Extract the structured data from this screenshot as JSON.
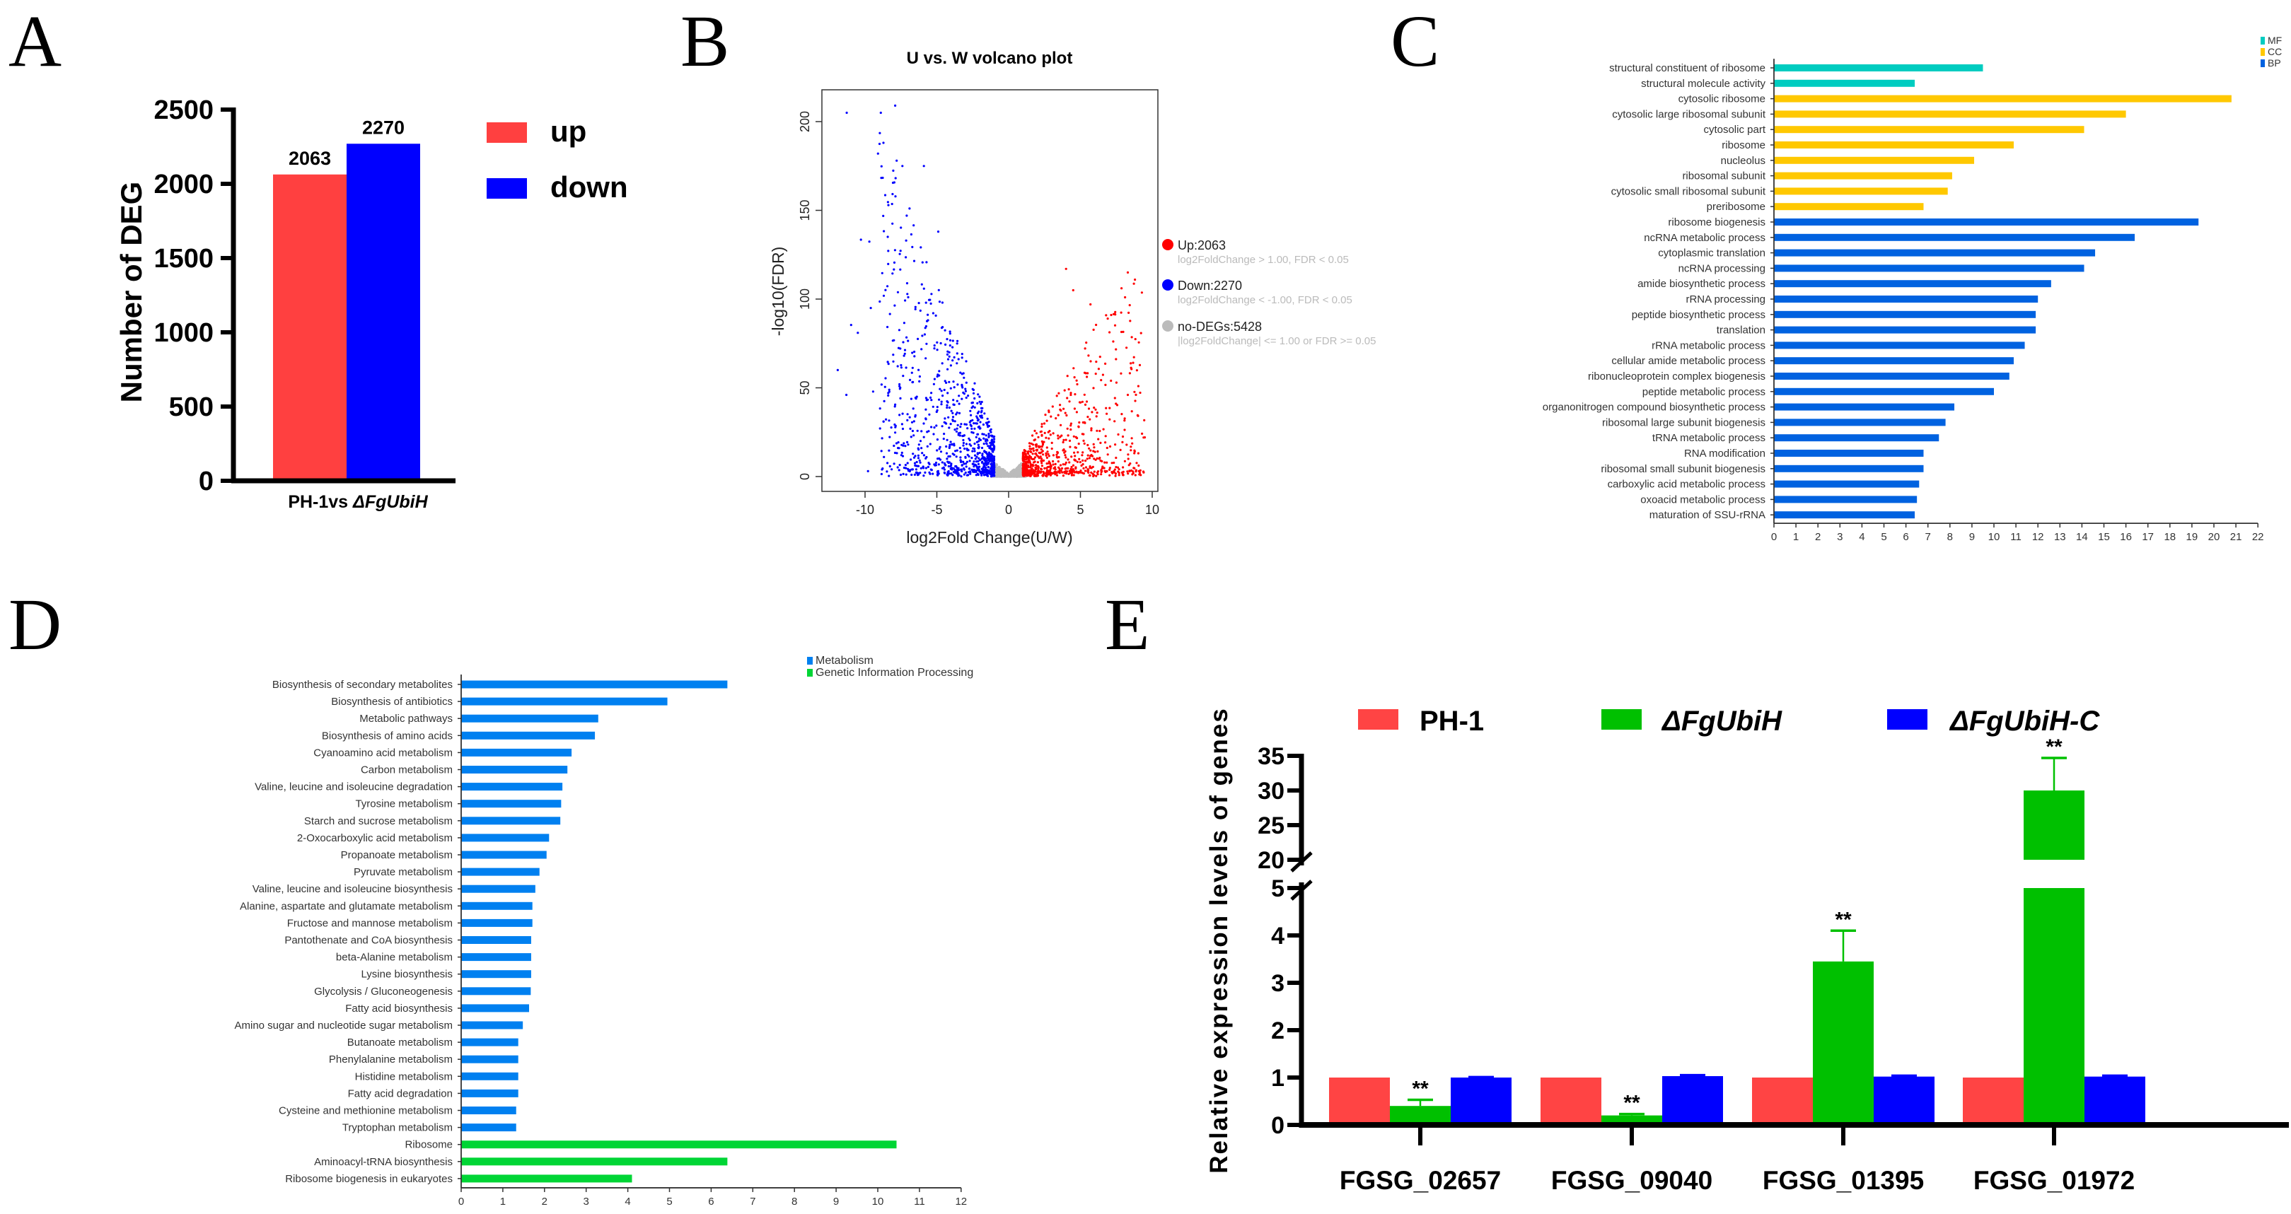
{
  "panel_letters": {
    "a": "A",
    "b": "B",
    "c": "C",
    "d": "D",
    "e": "E"
  },
  "chart_data": [
    {
      "panel": "A",
      "type": "bar",
      "title": "",
      "categories": [
        "PH-1vs ΔFgUbiH"
      ],
      "xlabel_prefix": "PH-1vs ",
      "xlabel_strain": "ΔFgUbiH",
      "ylabel": "Number of DEG",
      "ylim": [
        0,
        2500
      ],
      "yticks": [
        "0",
        "500",
        "1000",
        "1500",
        "2000",
        "2500"
      ],
      "series": [
        {
          "name": "up",
          "values": [
            2063
          ],
          "label": "2063",
          "color": "#FF4040"
        },
        {
          "name": "down",
          "values": [
            2270
          ],
          "label": "2270",
          "color": "#0000FF"
        }
      ],
      "legend": "right"
    },
    {
      "panel": "B",
      "type": "scatter",
      "title": "U vs. W volcano plot",
      "xlabel": "log2Fold Change(U/W)",
      "ylabel": "-log10(FDR)",
      "xlim": [
        -12.5,
        10.5
      ],
      "ylim": [
        -8,
        218
      ],
      "xticks": [
        "-10",
        "-5",
        "0",
        "5",
        "10"
      ],
      "yticks": [
        "0",
        "50",
        "100",
        "150",
        "200"
      ],
      "series": [
        {
          "name": "Up",
          "count": 2063,
          "label": "Up:2063",
          "criteria": "log2FoldChange > 1.00, FDR < 0.05",
          "color": "#FF0000"
        },
        {
          "name": "Down",
          "count": 2270,
          "label": "Down:2270",
          "criteria": "log2FoldChange < -1.00, FDR < 0.05",
          "color": "#0000FF"
        },
        {
          "name": "no-DEGs",
          "count": 5428,
          "label": "no-DEGs:5428",
          "criteria": "|log2FoldChange| <= 1.00 or FDR >= 0.05",
          "color": "#BBBBBB"
        }
      ],
      "legend": "right"
    },
    {
      "panel": "C",
      "type": "bar",
      "orientation": "horizontal",
      "xlim": [
        0,
        22
      ],
      "xticks": [
        "0",
        "1",
        "2",
        "3",
        "4",
        "5",
        "6",
        "7",
        "8",
        "9",
        "10",
        "11",
        "12",
        "13",
        "14",
        "15",
        "16",
        "17",
        "18",
        "19",
        "20",
        "21",
        "22"
      ],
      "legend_items": [
        {
          "key": "MF",
          "label": "MF",
          "color": "#00CCC0"
        },
        {
          "key": "CC",
          "label": "CC",
          "color": "#FFC800"
        },
        {
          "key": "BP",
          "label": "BP",
          "color": "#0062E0"
        }
      ],
      "legend": "top-right",
      "categories": [
        "structural constituent of ribosome",
        "structural molecule activity",
        "cytosolic ribosome",
        "cytosolic large ribosomal subunit",
        "cytosolic part",
        "ribosome",
        "nucleolus",
        "ribosomal subunit",
        "cytosolic small ribosomal subunit",
        "preribosome",
        "ribosome biogenesis",
        "ncRNA metabolic process",
        "cytoplasmic translation",
        "ncRNA processing",
        "amide biosynthetic process",
        "rRNA processing",
        "peptide biosynthetic process",
        "translation",
        "rRNA metabolic process",
        "cellular amide metabolic process",
        "ribonucleoprotein complex biogenesis",
        "peptide metabolic process",
        "organonitrogen compound biosynthetic process",
        "ribosomal large subunit biogenesis",
        "tRNA metabolic process",
        "RNA modification",
        "ribosomal small subunit biogenesis",
        "carboxylic acid metabolic process",
        "oxoacid metabolic process",
        "maturation of SSU-rRNA"
      ],
      "values": [
        9.5,
        6.4,
        20.8,
        16.0,
        14.1,
        10.9,
        9.1,
        8.1,
        7.9,
        6.8,
        19.3,
        16.4,
        14.6,
        14.1,
        12.6,
        12.0,
        11.9,
        11.9,
        11.4,
        10.9,
        10.7,
        10.0,
        8.2,
        7.8,
        7.5,
        6.8,
        6.8,
        6.6,
        6.5,
        6.4
      ],
      "groups": [
        "MF",
        "MF",
        "CC",
        "CC",
        "CC",
        "CC",
        "CC",
        "CC",
        "CC",
        "CC",
        "BP",
        "BP",
        "BP",
        "BP",
        "BP",
        "BP",
        "BP",
        "BP",
        "BP",
        "BP",
        "BP",
        "BP",
        "BP",
        "BP",
        "BP",
        "BP",
        "BP",
        "BP",
        "BP",
        "BP"
      ]
    },
    {
      "panel": "D",
      "type": "bar",
      "orientation": "horizontal",
      "xlim": [
        0,
        12
      ],
      "xticks": [
        "0",
        "1",
        "2",
        "3",
        "4",
        "5",
        "6",
        "7",
        "8",
        "9",
        "10",
        "11",
        "12"
      ],
      "legend_items": [
        {
          "key": "M",
          "label": "Metabolism",
          "color": "#0080F0"
        },
        {
          "key": "G",
          "label": "Genetic Information Processing",
          "color": "#00D535"
        }
      ],
      "legend": "top-right",
      "categories": [
        "Biosynthesis of secondary metabolites",
        "Biosynthesis of antibiotics",
        "Metabolic pathways",
        "Biosynthesis of amino acids",
        "Cyanoamino acid metabolism",
        "Carbon metabolism",
        "Valine, leucine and isoleucine degradation",
        "Tyrosine metabolism",
        "Starch and sucrose metabolism",
        "2-Oxocarboxylic acid metabolism",
        "Propanoate metabolism",
        "Pyruvate metabolism",
        "Valine, leucine and isoleucine biosynthesis",
        "Alanine, aspartate and glutamate metabolism",
        "Fructose and mannose metabolism",
        "Pantothenate and CoA biosynthesis",
        "beta-Alanine metabolism",
        "Lysine biosynthesis",
        "Glycolysis / Gluconeogenesis",
        "Fatty acid biosynthesis",
        "Amino sugar and nucleotide sugar metabolism",
        "Butanoate metabolism",
        "Phenylalanine metabolism",
        "Histidine metabolism",
        "Fatty acid degradation",
        "Cysteine and methionine metabolism",
        "Tryptophan metabolism",
        "Ribosome",
        "Aminoacyl-tRNA biosynthesis",
        "Ribosome biogenesis in eukaryotes"
      ],
      "values": [
        6.39,
        4.95,
        3.29,
        3.21,
        2.65,
        2.55,
        2.43,
        2.4,
        2.38,
        2.11,
        2.05,
        1.88,
        1.78,
        1.71,
        1.71,
        1.68,
        1.68,
        1.68,
        1.67,
        1.63,
        1.48,
        1.37,
        1.37,
        1.37,
        1.37,
        1.32,
        1.32,
        10.45,
        6.39,
        4.1
      ],
      "groups": [
        "M",
        "M",
        "M",
        "M",
        "M",
        "M",
        "M",
        "M",
        "M",
        "M",
        "M",
        "M",
        "M",
        "M",
        "M",
        "M",
        "M",
        "M",
        "M",
        "M",
        "M",
        "M",
        "M",
        "M",
        "M",
        "M",
        "M",
        "G",
        "G",
        "G"
      ]
    },
    {
      "panel": "E",
      "type": "bar",
      "ylabel": "Relative expression levels of genes",
      "yaxis_break": [
        5,
        20
      ],
      "yticks": [
        "0",
        "1",
        "2",
        "3",
        "4",
        "5",
        "20",
        "25",
        "30",
        "35"
      ],
      "categories": [
        "FGSG_02657",
        "FGSG_09040",
        "FGSG_01395",
        "FGSG_01972"
      ],
      "series": [
        {
          "name": "PH-1",
          "values": [
            1.0,
            1.0,
            1.0,
            1.0
          ],
          "errors": [
            0,
            0,
            0,
            0
          ],
          "color": "#FF4444"
        },
        {
          "name": "ΔFgUbiH",
          "values": [
            0.4,
            0.2,
            3.45,
            30.0
          ],
          "errors": [
            0.13,
            0.03,
            0.65,
            4.7
          ],
          "significance": [
            "**",
            "**",
            "**",
            "**"
          ],
          "color": "#00C000"
        },
        {
          "name": "ΔFgUbiH-C",
          "values": [
            1.0,
            1.03,
            1.02,
            1.02
          ],
          "errors": [
            0.01,
            0.02,
            0.02,
            0.02
          ],
          "color": "#0000FF"
        }
      ],
      "legend": "top"
    }
  ]
}
